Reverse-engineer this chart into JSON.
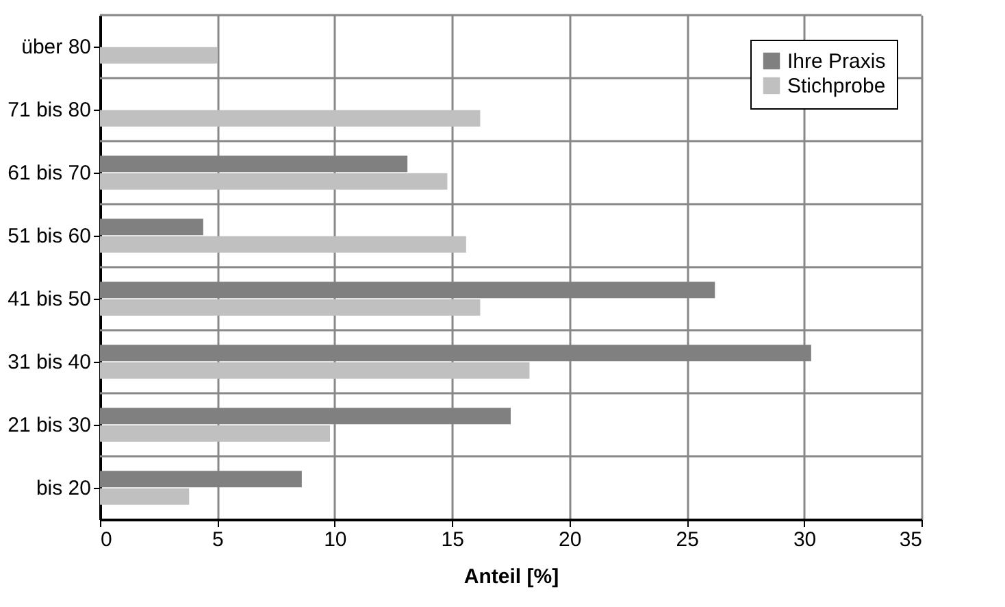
{
  "chart_data": {
    "type": "bar",
    "orientation": "horizontal",
    "xlabel": "Anteil [%]",
    "categories": [
      "über 80",
      "71 bis 80",
      "61 bis 70",
      "51 bis 60",
      "41 bis 50",
      "31 bis 40",
      "21 bis 30",
      "bis 20"
    ],
    "series": [
      {
        "name": "Ihre Praxis",
        "color": "#808080",
        "values": [
          null,
          null,
          13.1,
          4.4,
          26.2,
          30.3,
          17.5,
          8.6
        ]
      },
      {
        "name": "Stichprobe",
        "color": "#c0c0c0",
        "values": [
          5.0,
          16.2,
          14.8,
          15.6,
          16.2,
          18.3,
          9.8,
          3.8
        ]
      }
    ],
    "xlim": [
      0,
      35
    ],
    "xticks": [
      0,
      5,
      10,
      15,
      20,
      25,
      30,
      35
    ],
    "grid": true,
    "legend": "top right"
  }
}
